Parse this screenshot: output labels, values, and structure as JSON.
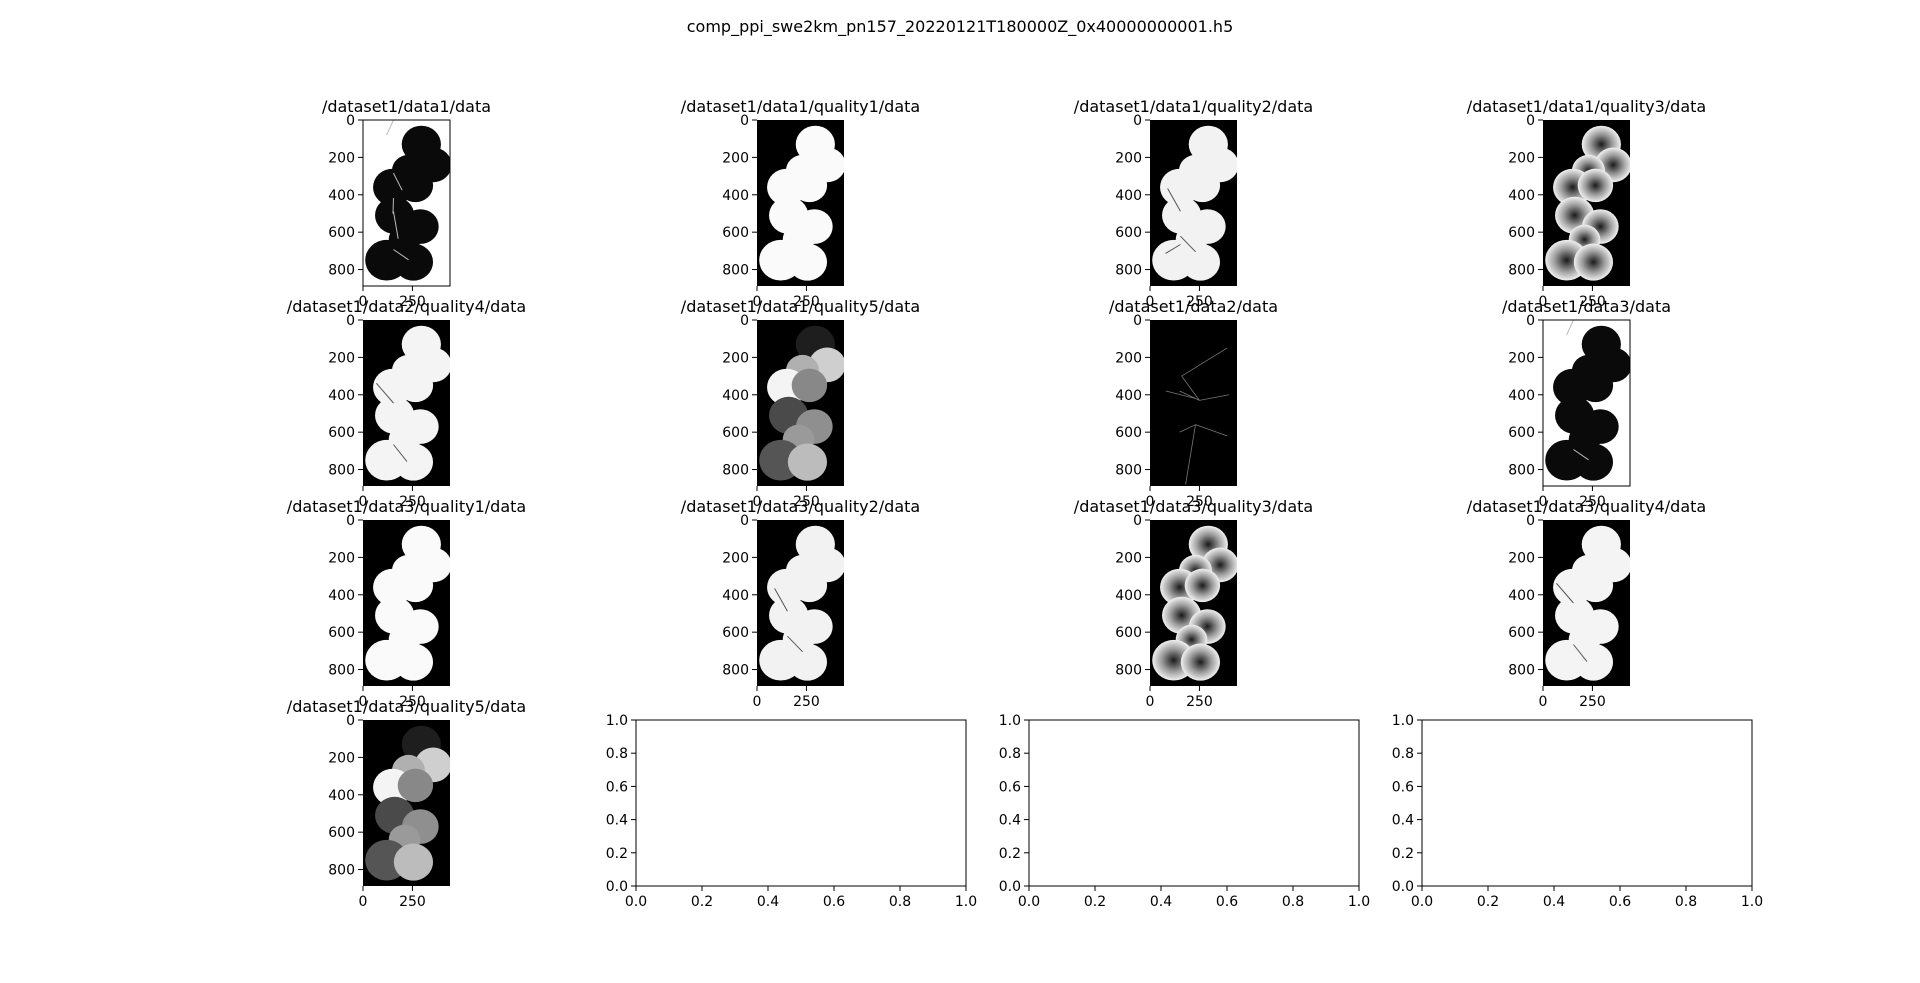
{
  "figure": {
    "title": "comp_ppi_swe2km_pn157_20220121T180000Z_0x40000000001.h5"
  },
  "chart_data": [
    {
      "type": "heatmap",
      "title": "/dataset1/data1/data",
      "ylim": [
        888,
        0
      ],
      "yticks": [
        0,
        200,
        400,
        600,
        800
      ],
      "xticks": [
        0,
        250
      ],
      "bg": "#ffffff",
      "fill": "#0a0a0a",
      "framed": true,
      "blobs": [
        [
          0.6,
          0.21,
          0.78
        ],
        [
          1.1,
          0.22,
          0.32
        ],
        [
          2.0,
          0.19,
          0.0
        ],
        [
          1.6,
          0.18,
          0.47
        ],
        [
          1.4,
          0.32,
          0.55
        ]
      ]
    },
    {
      "type": "heatmap",
      "title": "/dataset1/data1/quality1/data",
      "ylim": [
        888,
        0
      ],
      "yticks": [
        0,
        200,
        400,
        600,
        800
      ],
      "xticks": [
        0,
        250
      ],
      "bg": "#000000",
      "fill": "#fafafa",
      "framed": false
    },
    {
      "type": "heatmap",
      "title": "/dataset1/data1/quality2/data",
      "ylim": [
        888,
        0
      ],
      "yticks": [
        0,
        200,
        400,
        600,
        800
      ],
      "xticks": [
        0,
        250
      ],
      "bg": "#000000",
      "fill": "#f2f2f2",
      "framed": false,
      "blobs": [
        [
          4.2,
          0.3,
          0.55
        ],
        [
          0.8,
          0.25,
          0.7
        ],
        [
          2.6,
          0.2,
          0.75
        ]
      ]
    },
    {
      "type": "heatmap",
      "title": "/dataset1/data1/quality3/data",
      "ylim": [
        888,
        0
      ],
      "yticks": [
        0,
        200,
        400,
        600,
        800
      ],
      "xticks": [
        0,
        250
      ],
      "bg": "#000000",
      "fill": "#ececec",
      "framed": false,
      "radial": true
    },
    {
      "type": "heatmap",
      "title": "/dataset1/data2/quality4/data",
      "ylim": [
        888,
        0
      ],
      "yticks": [
        0,
        200,
        400,
        600,
        800
      ],
      "xticks": [
        0,
        250
      ],
      "bg": "#000000",
      "fill": "#f4f4f4",
      "framed": false,
      "blobs": [
        [
          4.0,
          0.3,
          0.5
        ],
        [
          0.9,
          0.25,
          0.75
        ]
      ]
    },
    {
      "type": "heatmap",
      "title": "/dataset1/data1/quality5/data",
      "ylim": [
        888,
        0
      ],
      "yticks": [
        0,
        200,
        400,
        600,
        800
      ],
      "xticks": [
        0,
        250
      ],
      "bg": "#000000",
      "fill": "#808080",
      "framed": false,
      "zones": true
    },
    {
      "type": "heatmap",
      "title": "/dataset1/data2/data",
      "ylim": [
        888,
        0
      ],
      "yticks": [
        0,
        200,
        400,
        600,
        800
      ],
      "xticks": [
        0,
        250
      ],
      "bg": "#000000",
      "fill": "#000000",
      "framed": false,
      "lines": true
    },
    {
      "type": "heatmap",
      "title": "/dataset1/data3/data",
      "ylim": [
        888,
        0
      ],
      "yticks": [
        0,
        200,
        400,
        600,
        800
      ],
      "xticks": [
        0,
        250
      ],
      "bg": "#ffffff",
      "fill": "#0a0a0a",
      "framed": true,
      "blobs": [
        [
          0.6,
          0.21,
          0.78
        ],
        [
          2.0,
          0.19,
          0.0
        ]
      ]
    },
    {
      "type": "heatmap",
      "title": "/dataset1/data3/quality1/data",
      "ylim": [
        888,
        0
      ],
      "yticks": [
        0,
        200,
        400,
        600,
        800
      ],
      "xticks": [
        0,
        250
      ],
      "bg": "#000000",
      "fill": "#fafafa",
      "framed": false
    },
    {
      "type": "heatmap",
      "title": "/dataset1/data3/quality2/data",
      "ylim": [
        888,
        0
      ],
      "yticks": [
        0,
        200,
        400,
        600,
        800
      ],
      "xticks": [
        0,
        250
      ],
      "bg": "#000000",
      "fill": "#f2f2f2",
      "framed": false,
      "blobs": [
        [
          4.2,
          0.3,
          0.55
        ],
        [
          0.8,
          0.25,
          0.7
        ]
      ]
    },
    {
      "type": "heatmap",
      "title": "/dataset1/data3/quality3/data",
      "ylim": [
        888,
        0
      ],
      "yticks": [
        0,
        200,
        400,
        600,
        800
      ],
      "xticks": [
        0,
        250
      ],
      "bg": "#000000",
      "fill": "#ececec",
      "framed": false,
      "radial": true
    },
    {
      "type": "heatmap",
      "title": "/dataset1/data3/quality4/data",
      "ylim": [
        888,
        0
      ],
      "yticks": [
        0,
        200,
        400,
        600,
        800
      ],
      "xticks": [
        0,
        250
      ],
      "bg": "#000000",
      "fill": "#f4f4f4",
      "framed": false,
      "blobs": [
        [
          4.0,
          0.3,
          0.5
        ],
        [
          0.9,
          0.25,
          0.75
        ]
      ]
    },
    {
      "type": "heatmap",
      "title": "/dataset1/data3/quality5/data",
      "ylim": [
        888,
        0
      ],
      "yticks": [
        0,
        200,
        400,
        600,
        800
      ],
      "xticks": [
        0,
        250
      ],
      "bg": "#000000",
      "fill": "#808080",
      "framed": false,
      "zones": true
    },
    {
      "type": "empty",
      "title": "",
      "xlim": [
        0,
        1
      ],
      "ylim": [
        0,
        1
      ],
      "xticks": [
        0.0,
        0.2,
        0.4,
        0.6,
        0.8,
        1.0
      ],
      "yticks": [
        0.0,
        0.2,
        0.4,
        0.6,
        0.8,
        1.0
      ]
    },
    {
      "type": "empty",
      "title": "",
      "xlim": [
        0,
        1
      ],
      "ylim": [
        0,
        1
      ],
      "xticks": [
        0.0,
        0.2,
        0.4,
        0.6,
        0.8,
        1.0
      ],
      "yticks": [
        0.0,
        0.2,
        0.4,
        0.6,
        0.8,
        1.0
      ]
    },
    {
      "type": "empty",
      "title": "",
      "xlim": [
        0,
        1
      ],
      "ylim": [
        0,
        1
      ],
      "xticks": [
        0.0,
        0.2,
        0.4,
        0.6,
        0.8,
        1.0
      ],
      "yticks": [
        0.0,
        0.2,
        0.4,
        0.6,
        0.8,
        1.0
      ]
    }
  ]
}
